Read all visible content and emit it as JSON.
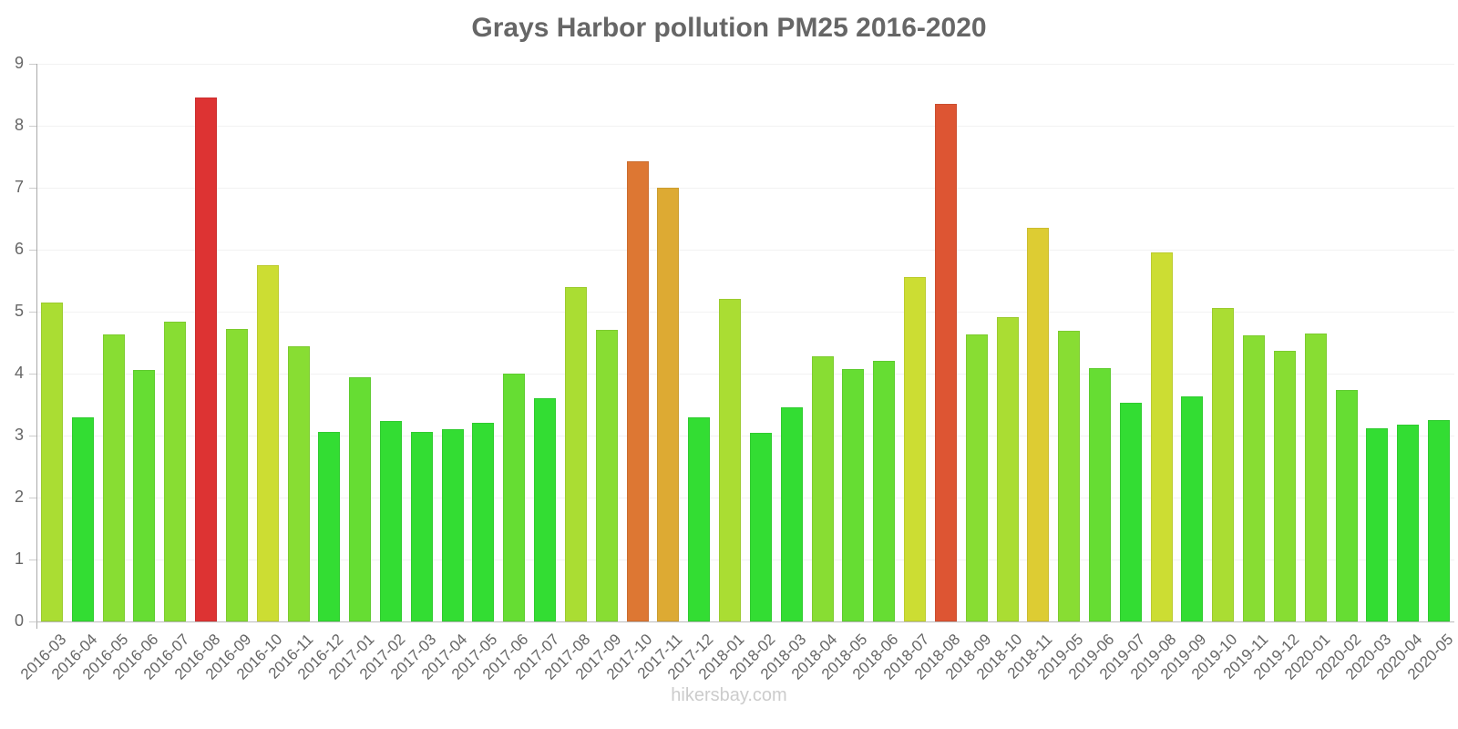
{
  "title": "Grays Harbor pollution PM25 2016-2020",
  "watermark": "hikersbay.com",
  "y_ticks": [
    "0",
    "1",
    "2",
    "3",
    "4",
    "5",
    "6",
    "7",
    "8",
    "9"
  ],
  "chart_data": {
    "type": "bar",
    "title": "Grays Harbor pollution PM25 2016-2020",
    "xlabel": "",
    "ylabel": "",
    "ylim": [
      0,
      9
    ],
    "grid": true,
    "legend": "none",
    "categories": [
      "2016-03",
      "2016-04",
      "2016-05",
      "2016-06",
      "2016-07",
      "2016-08",
      "2016-09",
      "2016-10",
      "2016-11",
      "2016-12",
      "2017-01",
      "2017-02",
      "2017-03",
      "2017-04",
      "2017-05",
      "2017-06",
      "2017-07",
      "2017-08",
      "2017-09",
      "2017-10",
      "2017-11",
      "2017-12",
      "2018-01",
      "2018-02",
      "2018-03",
      "2018-04",
      "2018-05",
      "2018-06",
      "2018-07",
      "2018-08",
      "2018-09",
      "2018-10",
      "2018-11",
      "2019-05",
      "2019-06",
      "2019-07",
      "2019-08",
      "2019-09",
      "2019-10",
      "2019-11",
      "2019-12",
      "2020-01",
      "2020-02",
      "2020-03",
      "2020-04",
      "2020-05"
    ],
    "values": [
      5.15,
      3.3,
      4.63,
      4.06,
      4.84,
      8.45,
      4.72,
      5.75,
      4.44,
      3.06,
      3.94,
      3.24,
      3.06,
      3.1,
      3.2,
      4.0,
      3.6,
      5.4,
      4.71,
      7.42,
      7.0,
      3.29,
      5.21,
      3.04,
      3.46,
      4.28,
      4.07,
      4.21,
      5.56,
      8.35,
      4.63,
      4.91,
      6.35,
      4.69,
      4.09,
      3.53,
      5.96,
      3.63,
      5.06,
      4.62,
      4.37,
      4.65,
      3.74,
      3.12,
      3.18,
      3.25
    ],
    "colors": [
      "#aadd33",
      "#33dd33",
      "#88dd33",
      "#66dd33",
      "#88dd33",
      "#dd3333",
      "#88dd33",
      "#ccdd33",
      "#88dd33",
      "#33dd33",
      "#66dd33",
      "#33dd33",
      "#33dd33",
      "#33dd33",
      "#33dd33",
      "#66dd33",
      "#33dd33",
      "#aadd33",
      "#88dd33",
      "#dd7733",
      "#ddaa33",
      "#33dd33",
      "#aadd33",
      "#33dd33",
      "#33dd33",
      "#88dd33",
      "#66dd33",
      "#66dd33",
      "#ccdd33",
      "#dd5533",
      "#88dd33",
      "#aadd33",
      "#ddcc33",
      "#88dd33",
      "#66dd33",
      "#33dd33",
      "#ccdd33",
      "#33dd33",
      "#aadd33",
      "#88dd33",
      "#88dd33",
      "#88dd33",
      "#66dd33",
      "#33dd33",
      "#33dd33",
      "#33dd33"
    ]
  }
}
